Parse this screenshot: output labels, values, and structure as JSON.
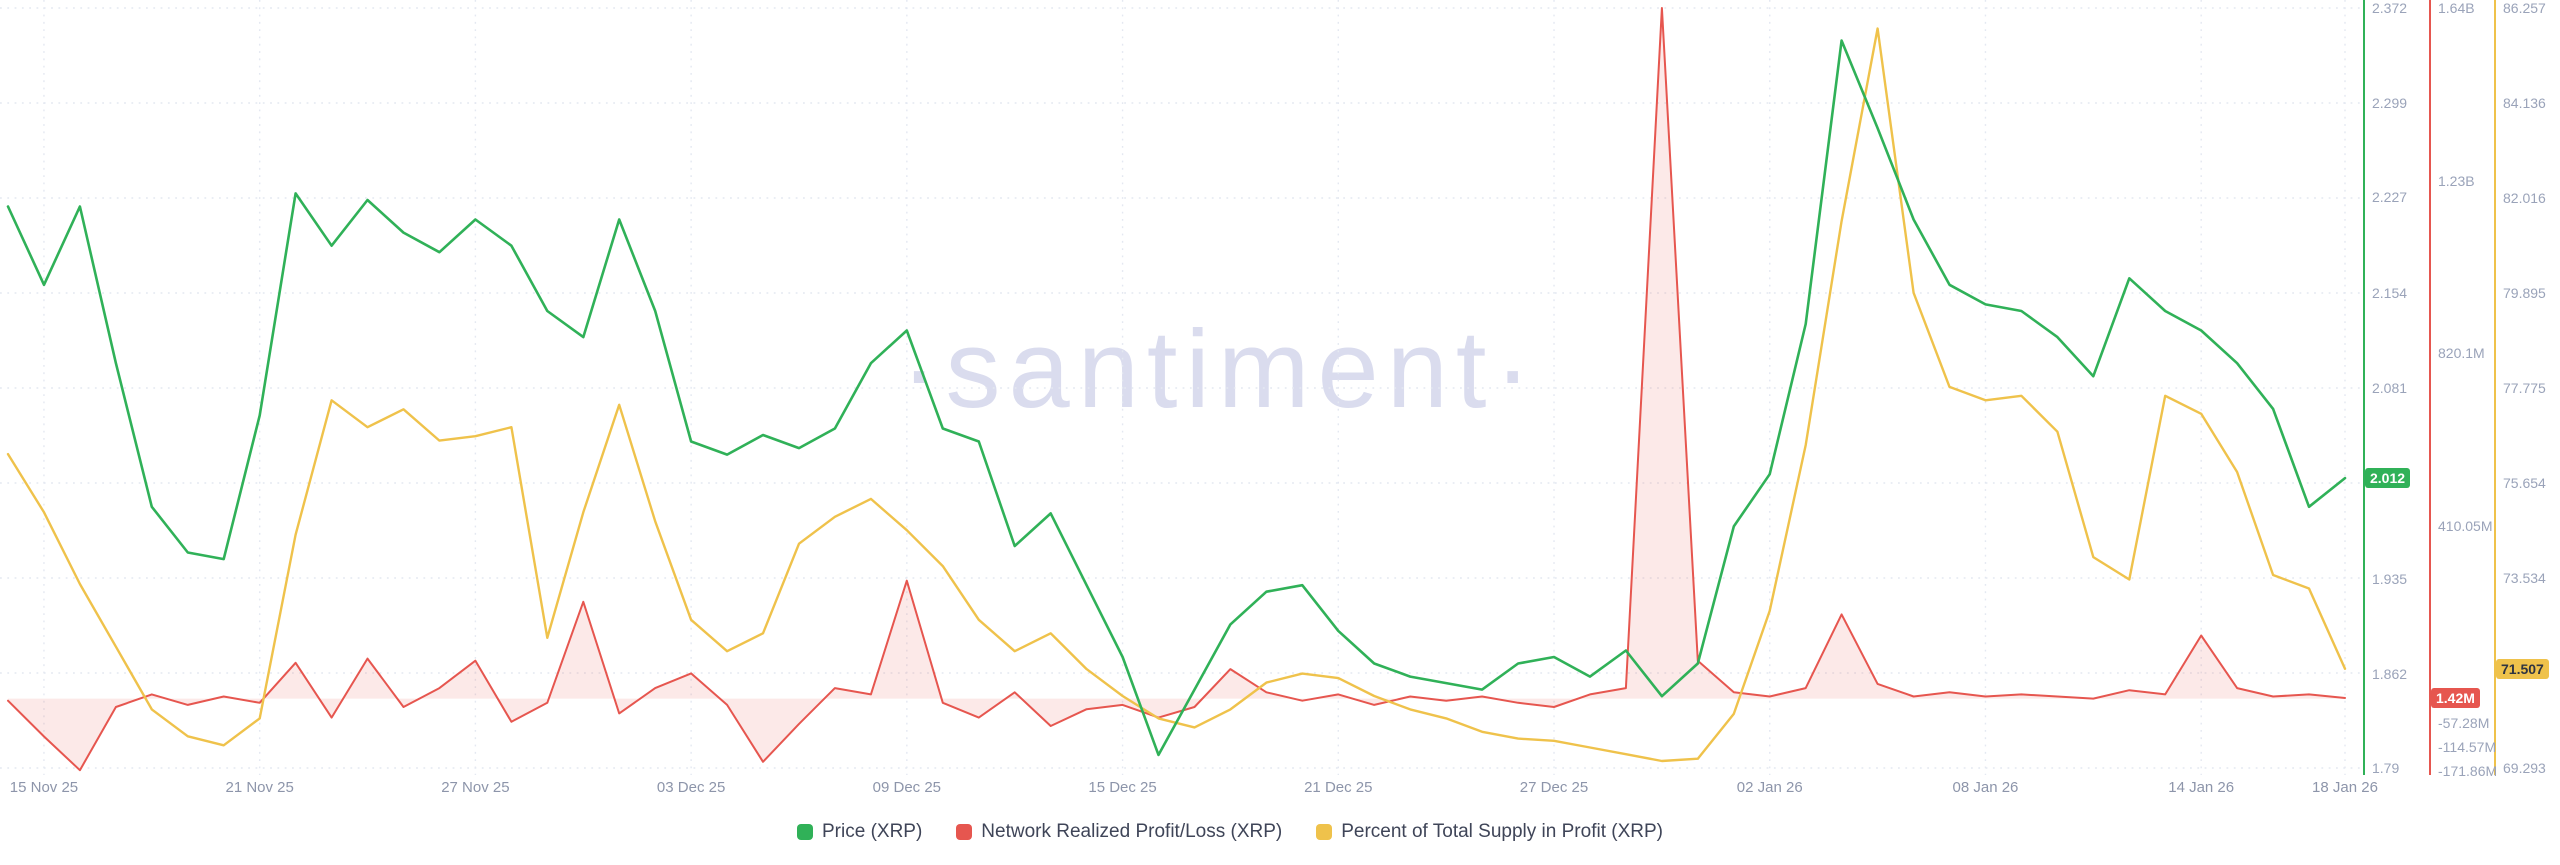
{
  "watermark": "·santiment·",
  "colors": {
    "background": "#ffffff",
    "grid": "#e4e8f1",
    "axis_text": "#9aa3b9",
    "date_text": "#8d95aa",
    "legend_text": "#3f4558",
    "watermark": "#dadcee"
  },
  "chart_data": {
    "type": "line",
    "x_axis": {
      "labels": [
        "15 Nov 25",
        "21 Nov 25",
        "27 Nov 25",
        "03 Dec 25",
        "09 Dec 25",
        "15 Dec 25",
        "21 Dec 25",
        "27 Dec 25",
        "02 Jan 26",
        "08 Jan 26",
        "14 Jan 26",
        "18 Jan 26"
      ],
      "label_indices": [
        1,
        7,
        13,
        19,
        25,
        31,
        37,
        43,
        49,
        55,
        61,
        65
      ]
    },
    "series": [
      {
        "id": "price",
        "name": "Price (XRP)",
        "color": "#30b158",
        "scale": {
          "min": 1.79,
          "max": 2.372
        },
        "ticks": [
          {
            "v": 2.372,
            "label": "2.372"
          },
          {
            "v": 2.299,
            "label": "2.299"
          },
          {
            "v": 2.227,
            "label": "2.227"
          },
          {
            "v": 2.154,
            "label": "2.154"
          },
          {
            "v": 2.081,
            "label": "2.081"
          },
          {
            "v": 1.935,
            "label": "1.935"
          },
          {
            "v": 1.862,
            "label": "1.862"
          },
          {
            "v": 1.79,
            "label": "1.79"
          }
        ],
        "badge": {
          "label": "2.012",
          "value": 2.012,
          "text_color": "#ffffff"
        },
        "values": [
          2.22,
          2.16,
          2.22,
          2.1,
          1.99,
          1.955,
          1.95,
          2.06,
          2.23,
          2.19,
          2.225,
          2.2,
          2.185,
          2.21,
          2.19,
          2.14,
          2.12,
          2.21,
          2.14,
          2.04,
          2.03,
          2.045,
          2.035,
          2.05,
          2.1,
          2.125,
          2.05,
          2.04,
          1.96,
          1.985,
          1.93,
          1.875,
          1.8,
          1.85,
          1.9,
          1.925,
          1.93,
          1.895,
          1.87,
          1.86,
          1.855,
          1.85,
          1.87,
          1.875,
          1.86,
          1.88,
          1.845,
          1.87,
          1.975,
          2.015,
          2.13,
          2.347,
          2.28,
          2.21,
          2.16,
          2.145,
          2.14,
          2.12,
          2.09,
          2.165,
          2.14,
          2.125,
          2.1,
          2.065,
          1.99,
          2.012
        ]
      },
      {
        "id": "pnl",
        "name": "Network Realized Profit/Loss (XRP)",
        "color": "#e6564f",
        "fill": "rgba(230,86,79,0.13)",
        "baseline": 0,
        "unit": "M",
        "scale": {
          "min": -171.86,
          "max": 1640
        },
        "ticks": [
          {
            "v": 1640,
            "label": "1.64B"
          },
          {
            "v": 1230,
            "label": "1.23B"
          },
          {
            "v": 820.1,
            "label": "820.1M"
          },
          {
            "v": 410.05,
            "label": "410.05M"
          },
          {
            "v": -57.28,
            "label": "-57.28M"
          },
          {
            "v": -114.57,
            "label": "-114.57M"
          },
          {
            "v": -171.86,
            "label": "-171.86M"
          }
        ],
        "badge": {
          "label": "1.42M",
          "value": 1.42,
          "text_color": "#ffffff"
        },
        "values": [
          -5,
          -90,
          -170,
          -20,
          10,
          -15,
          5,
          -10,
          85,
          -45,
          95,
          -20,
          25,
          90,
          -55,
          -10,
          230,
          -35,
          25,
          60,
          -15,
          -150,
          -60,
          25,
          10,
          280,
          -10,
          -45,
          15,
          -65,
          -25,
          -15,
          -45,
          -20,
          70,
          15,
          -5,
          10,
          -15,
          5,
          -5,
          5,
          -10,
          -20,
          10,
          25,
          1640,
          90,
          15,
          5,
          25,
          200,
          35,
          5,
          15,
          5,
          10,
          5,
          0,
          20,
          10,
          150,
          25,
          5,
          10,
          1.42
        ]
      },
      {
        "id": "supply",
        "name": "Percent of Total Supply in Profit (XRP)",
        "color": "#efc24b",
        "scale": {
          "min": 69.293,
          "max": 86.257
        },
        "ticks": [
          {
            "v": 86.257,
            "label": "86.257"
          },
          {
            "v": 84.136,
            "label": "84.136"
          },
          {
            "v": 82.016,
            "label": "82.016"
          },
          {
            "v": 79.895,
            "label": "79.895"
          },
          {
            "v": 77.775,
            "label": "77.775"
          },
          {
            "v": 75.654,
            "label": "75.654"
          },
          {
            "v": 73.534,
            "label": "73.534"
          },
          {
            "v": 69.293,
            "label": "69.293"
          }
        ],
        "badge": {
          "label": "71.507",
          "value": 71.507,
          "text_color": "#2f3441"
        },
        "values": [
          76.3,
          75.0,
          73.4,
          72.0,
          70.6,
          70.0,
          69.8,
          70.4,
          74.5,
          77.5,
          76.9,
          77.3,
          76.6,
          76.7,
          76.9,
          72.2,
          75.0,
          77.4,
          74.8,
          72.6,
          71.9,
          72.3,
          74.3,
          74.9,
          75.3,
          74.6,
          73.8,
          72.6,
          71.9,
          72.3,
          71.5,
          70.9,
          70.4,
          70.2,
          70.6,
          71.2,
          71.4,
          71.3,
          70.9,
          70.6,
          70.4,
          70.1,
          69.95,
          69.9,
          69.75,
          69.6,
          69.45,
          69.5,
          70.5,
          72.8,
          76.5,
          81.5,
          85.8,
          79.9,
          77.8,
          77.5,
          77.6,
          76.8,
          74.0,
          73.5,
          77.6,
          77.2,
          75.9,
          73.6,
          73.3,
          71.507
        ]
      }
    ]
  }
}
